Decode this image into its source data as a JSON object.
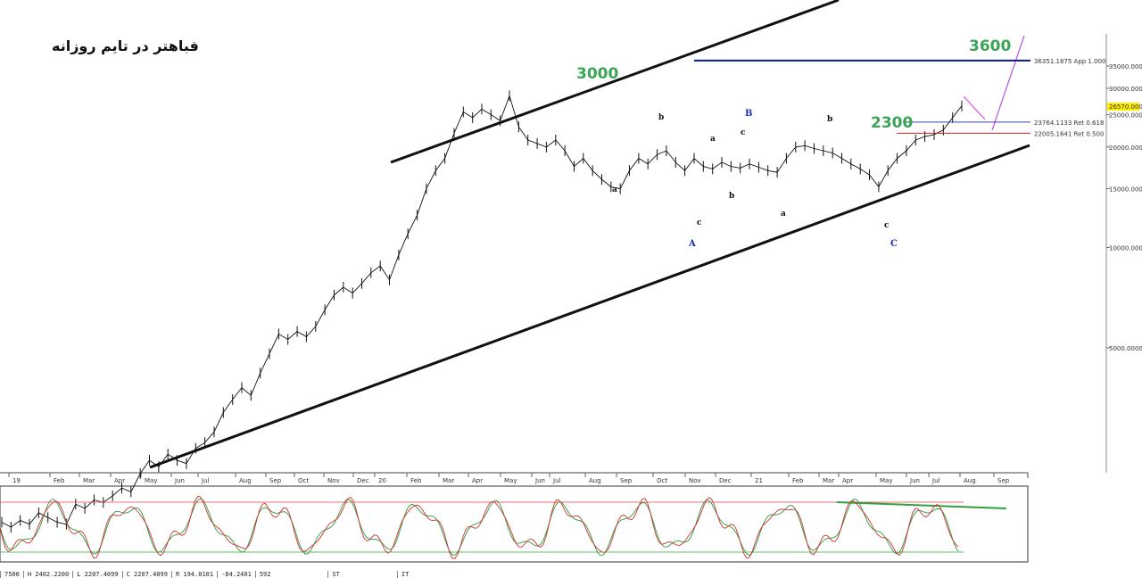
{
  "title": "فباهتر در تایم روزانه",
  "annotations": {
    "peak_label": "3000",
    "support_label": "2300",
    "target_label": "3600",
    "peak_color": "#3aa655",
    "line_color": "#111111"
  },
  "levels": [
    {
      "value": 36351.1875,
      "label": "36351.1875 App 1.000",
      "color": "#0a1a8c"
    },
    {
      "value": 23764.1133,
      "label": "23764.1133 Ret 0.618",
      "color": "#3344aa"
    },
    {
      "value": 22005.1641,
      "label": "22005.1641 Ret 0.500",
      "color": "#cc2222"
    }
  ],
  "last_price": "26570.0000",
  "waves": {
    "small": [
      "a",
      "b",
      "c",
      "a",
      "b",
      "c",
      "a",
      "b",
      "c"
    ],
    "major": [
      "A",
      "B",
      "C"
    ]
  },
  "chart_data": {
    "type": "line",
    "scale": "log",
    "y_ticks": [
      "35000.0000",
      "30000.0000",
      "25000.0000",
      "20000.0000",
      "15000.0000",
      "10000.0000",
      "5000.0000"
    ],
    "y_tick_values": [
      35000,
      30000,
      25000,
      20000,
      15000,
      10000,
      5000
    ],
    "x_ticks": [
      "19",
      "Feb",
      "Mar",
      "Apr",
      "May",
      "Jun",
      "Jul",
      "Aug",
      "Sep",
      "Oct",
      "Nov",
      "Dec",
      "20",
      "Feb",
      "Mar",
      "Apr",
      "May",
      "Jun",
      "Jul",
      "Aug",
      "Sep",
      "Oct",
      "Nov",
      "Dec",
      "21",
      "Feb",
      "Mar",
      "Apr",
      "May",
      "Jun",
      "Jul",
      "Aug",
      "Sep"
    ],
    "series": [
      {
        "values": [
          1500,
          1450,
          1520,
          1480,
          1600,
          1550,
          1500,
          1480,
          1700,
          1650,
          1750,
          1720,
          1800,
          1900,
          1850,
          2100,
          2300,
          2200,
          2400,
          2300,
          2250,
          2500,
          2600,
          2800,
          3200,
          3500,
          3800,
          3600,
          4200,
          4800,
          5500,
          5300,
          5600,
          5400,
          5800,
          6500,
          7200,
          7600,
          7300,
          7800,
          8400,
          8800,
          8000,
          9500,
          11000,
          12500,
          15000,
          17000,
          18500,
          22000,
          25500,
          24500,
          26000,
          25000,
          24000,
          28500,
          23000,
          21000,
          20500,
          20000,
          21000,
          19500,
          17500,
          18500,
          17000,
          16000,
          15200,
          15000,
          17000,
          18500,
          17800,
          19000,
          19500,
          18000,
          17000,
          18500,
          17500,
          17200,
          18000,
          17500,
          17300,
          17800,
          17400,
          17000,
          16800,
          18500,
          20000,
          20200,
          19800,
          19500,
          19200,
          18500,
          17800,
          17200,
          16500,
          15200,
          17000,
          18500,
          19500,
          21000,
          21500,
          21800,
          22500,
          24500,
          26570
        ]
      }
    ],
    "oscillator": {
      "levels": [
        80,
        20
      ]
    }
  },
  "status_bar": [
    "7500",
    "H 2402.2200",
    "L 2207.4099",
    "C 2207.4099",
    "R 194.8101",
    "-84.2401",
    "592",
    "ST",
    "IT"
  ]
}
